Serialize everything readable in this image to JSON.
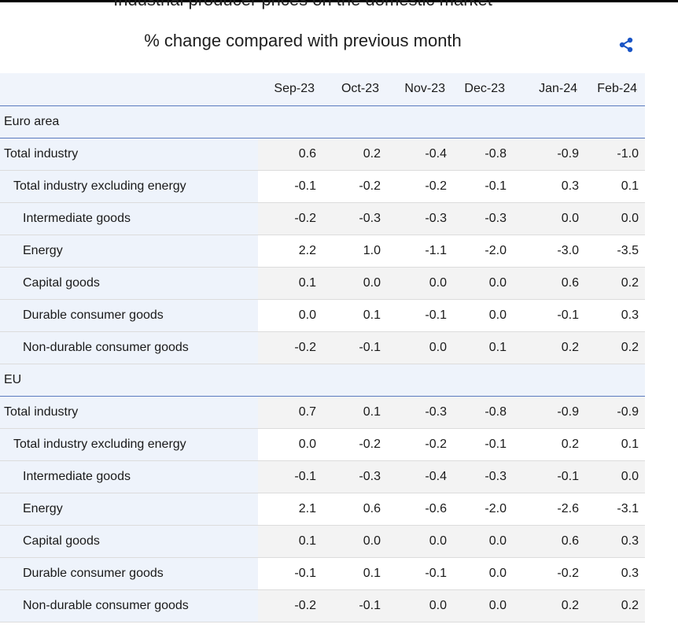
{
  "header": {
    "title": "Industrial producer prices on the domestic market",
    "subtitle": "% change compared with previous month"
  },
  "icons": {
    "share": "share-icon"
  },
  "colors": {
    "accent": "#1a55c6",
    "header_bg": "#f0f4fb",
    "group_rule": "#5b7bbf"
  },
  "chart_data": {
    "type": "table",
    "columns": [
      "Sep-23",
      "Oct-23",
      "Nov-23",
      "Dec-23",
      "Jan-24",
      "Feb-24"
    ],
    "groups": [
      {
        "name": "Euro area",
        "rows": [
          {
            "label": "Total industry",
            "indent": 0,
            "values": [
              "0.6",
              "0.2",
              "-0.4",
              "-0.8",
              "-0.9",
              "-1.0"
            ]
          },
          {
            "label": "Total industry excluding energy",
            "indent": 1,
            "values": [
              "-0.1",
              "-0.2",
              "-0.2",
              "-0.1",
              "0.3",
              "0.1"
            ]
          },
          {
            "label": "Intermediate goods",
            "indent": 2,
            "values": [
              "-0.2",
              "-0.3",
              "-0.3",
              "-0.3",
              "0.0",
              "0.0"
            ]
          },
          {
            "label": "Energy",
            "indent": 2,
            "values": [
              "2.2",
              "1.0",
              "-1.1",
              "-2.0",
              "-3.0",
              "-3.5"
            ]
          },
          {
            "label": "Capital goods",
            "indent": 2,
            "values": [
              "0.1",
              "0.0",
              "0.0",
              "0.0",
              "0.6",
              "0.2"
            ]
          },
          {
            "label": "Durable consumer goods",
            "indent": 2,
            "values": [
              "0.0",
              "0.1",
              "-0.1",
              "0.0",
              "-0.1",
              "0.3"
            ]
          },
          {
            "label": "Non-durable consumer goods",
            "indent": 2,
            "values": [
              "-0.2",
              "-0.1",
              "0.0",
              "0.1",
              "0.2",
              "0.2"
            ]
          }
        ]
      },
      {
        "name": "EU",
        "rows": [
          {
            "label": "Total industry",
            "indent": 0,
            "values": [
              "0.7",
              "0.1",
              "-0.3",
              "-0.8",
              "-0.9",
              "-0.9"
            ]
          },
          {
            "label": "Total industry excluding energy",
            "indent": 1,
            "values": [
              "0.0",
              "-0.2",
              "-0.2",
              "-0.1",
              "0.2",
              "0.1"
            ]
          },
          {
            "label": "Intermediate goods",
            "indent": 2,
            "values": [
              "-0.1",
              "-0.3",
              "-0.4",
              "-0.3",
              "-0.1",
              "0.0"
            ]
          },
          {
            "label": "Energy",
            "indent": 2,
            "values": [
              "2.1",
              "0.6",
              "-0.6",
              "-2.0",
              "-2.6",
              "-3.1"
            ]
          },
          {
            "label": "Capital goods",
            "indent": 2,
            "values": [
              "0.1",
              "0.0",
              "0.0",
              "0.0",
              "0.6",
              "0.3"
            ]
          },
          {
            "label": "Durable consumer goods",
            "indent": 2,
            "values": [
              "-0.1",
              "0.1",
              "-0.1",
              "0.0",
              "-0.2",
              "0.3"
            ]
          },
          {
            "label": "Non-durable consumer goods",
            "indent": 2,
            "values": [
              "-0.2",
              "-0.1",
              "0.0",
              "0.0",
              "0.2",
              "0.2"
            ]
          }
        ]
      }
    ]
  }
}
